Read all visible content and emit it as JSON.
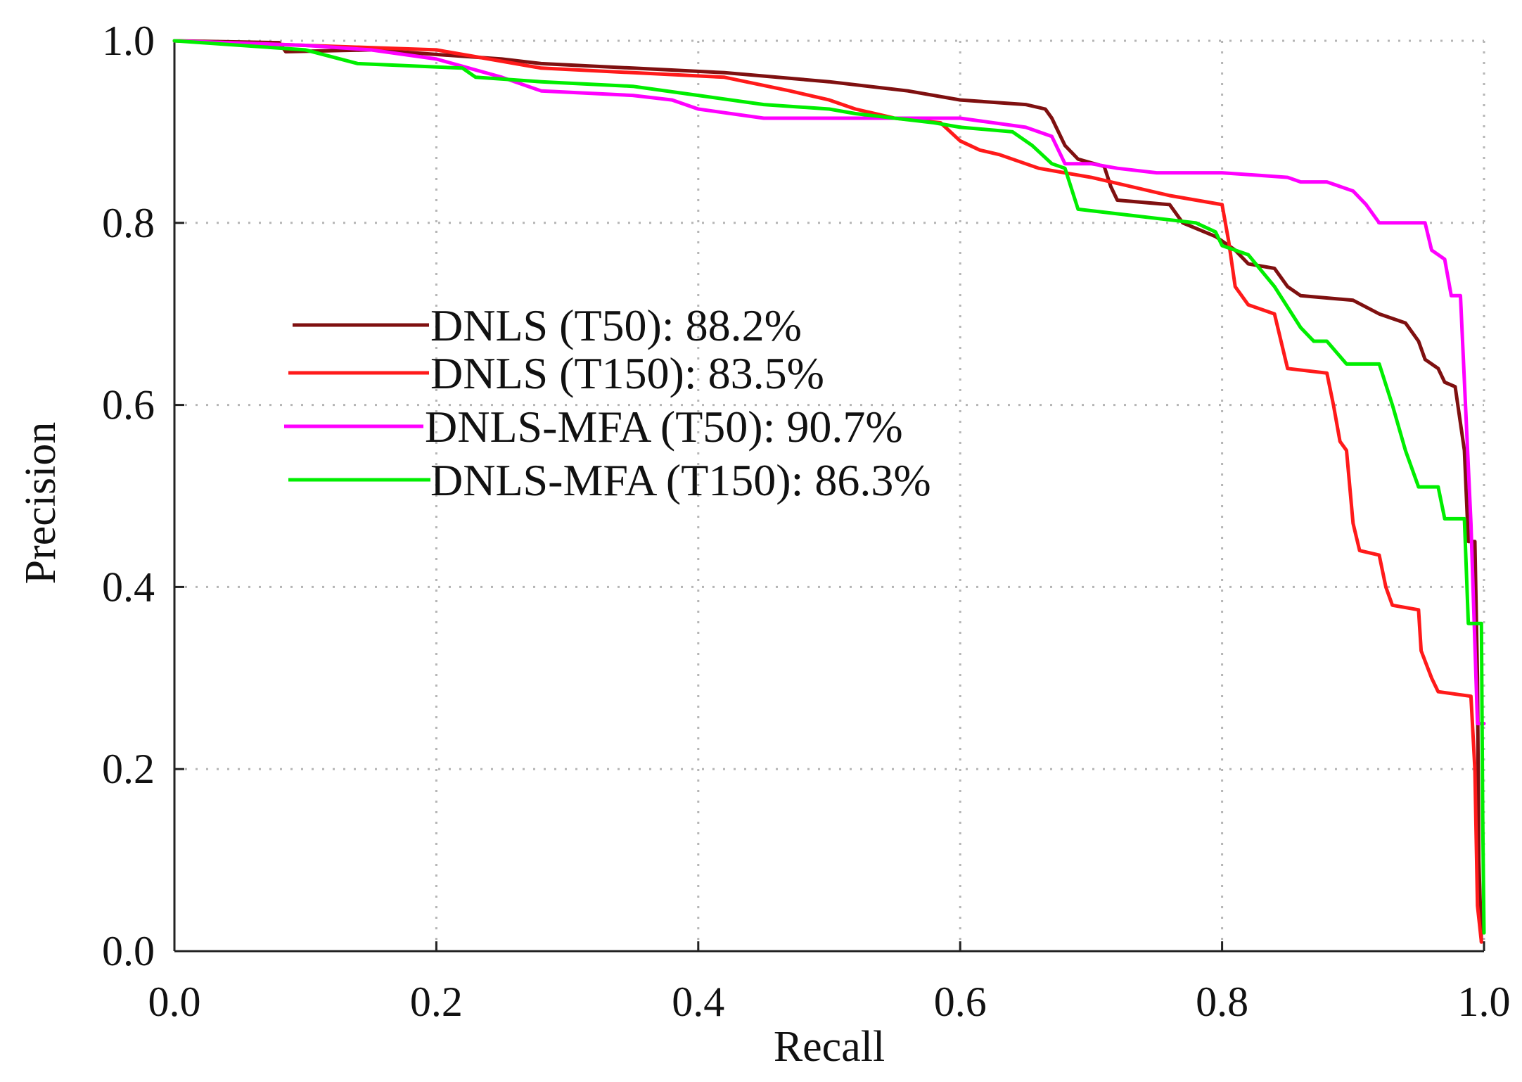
{
  "chart_data": {
    "type": "line",
    "title": "",
    "xlabel": "Recall",
    "ylabel": "Precision",
    "xlim": [
      0.0,
      1.0
    ],
    "ylim": [
      0.0,
      1.0
    ],
    "x_ticks": [
      "0.0",
      "0.2",
      "0.4",
      "0.6",
      "0.8",
      "1.0"
    ],
    "y_ticks": [
      "0.0",
      "0.2",
      "0.4",
      "0.6",
      "0.8",
      "1.0"
    ],
    "grid": true,
    "legend_position": "center-left",
    "series": [
      {
        "name": "DNLS (T50): 88.2%",
        "color": "#7f1010",
        "points": [
          [
            0.0,
            1.0
          ],
          [
            0.08,
            0.998
          ],
          [
            0.085,
            0.988
          ],
          [
            0.15,
            0.99
          ],
          [
            0.2,
            0.985
          ],
          [
            0.25,
            0.98
          ],
          [
            0.28,
            0.975
          ],
          [
            0.35,
            0.97
          ],
          [
            0.42,
            0.965
          ],
          [
            0.5,
            0.955
          ],
          [
            0.56,
            0.945
          ],
          [
            0.6,
            0.935
          ],
          [
            0.65,
            0.93
          ],
          [
            0.665,
            0.925
          ],
          [
            0.67,
            0.915
          ],
          [
            0.68,
            0.885
          ],
          [
            0.69,
            0.87
          ],
          [
            0.71,
            0.862
          ],
          [
            0.715,
            0.84
          ],
          [
            0.72,
            0.825
          ],
          [
            0.76,
            0.82
          ],
          [
            0.77,
            0.8
          ],
          [
            0.795,
            0.785
          ],
          [
            0.81,
            0.77
          ],
          [
            0.82,
            0.755
          ],
          [
            0.84,
            0.75
          ],
          [
            0.85,
            0.73
          ],
          [
            0.86,
            0.72
          ],
          [
            0.9,
            0.715
          ],
          [
            0.92,
            0.7
          ],
          [
            0.94,
            0.69
          ],
          [
            0.95,
            0.67
          ],
          [
            0.955,
            0.65
          ],
          [
            0.965,
            0.64
          ],
          [
            0.97,
            0.625
          ],
          [
            0.978,
            0.62
          ],
          [
            0.985,
            0.55
          ],
          [
            0.988,
            0.45
          ],
          [
            0.993,
            0.45
          ],
          [
            0.995,
            0.3
          ],
          [
            0.996,
            0.1
          ],
          [
            0.998,
            0.01
          ]
        ]
      },
      {
        "name": "DNLS (T150): 83.5%",
        "color": "#ff1a1a",
        "points": [
          [
            0.0,
            1.0
          ],
          [
            0.1,
            0.995
          ],
          [
            0.2,
            0.99
          ],
          [
            0.28,
            0.97
          ],
          [
            0.35,
            0.965
          ],
          [
            0.42,
            0.96
          ],
          [
            0.47,
            0.945
          ],
          [
            0.5,
            0.935
          ],
          [
            0.52,
            0.925
          ],
          [
            0.55,
            0.915
          ],
          [
            0.585,
            0.91
          ],
          [
            0.6,
            0.89
          ],
          [
            0.615,
            0.88
          ],
          [
            0.63,
            0.875
          ],
          [
            0.66,
            0.86
          ],
          [
            0.7,
            0.85
          ],
          [
            0.73,
            0.84
          ],
          [
            0.76,
            0.83
          ],
          [
            0.8,
            0.82
          ],
          [
            0.805,
            0.78
          ],
          [
            0.81,
            0.73
          ],
          [
            0.82,
            0.71
          ],
          [
            0.84,
            0.7
          ],
          [
            0.845,
            0.67
          ],
          [
            0.85,
            0.64
          ],
          [
            0.88,
            0.635
          ],
          [
            0.885,
            0.6
          ],
          [
            0.89,
            0.56
          ],
          [
            0.895,
            0.55
          ],
          [
            0.9,
            0.47
          ],
          [
            0.905,
            0.44
          ],
          [
            0.92,
            0.435
          ],
          [
            0.925,
            0.4
          ],
          [
            0.93,
            0.38
          ],
          [
            0.95,
            0.375
          ],
          [
            0.952,
            0.33
          ],
          [
            0.96,
            0.3
          ],
          [
            0.965,
            0.285
          ],
          [
            0.99,
            0.28
          ],
          [
            0.993,
            0.2
          ],
          [
            0.995,
            0.05
          ],
          [
            0.998,
            0.01
          ]
        ]
      },
      {
        "name": "DNLS-MFA (T50): 90.7%",
        "color": "#ff00ff",
        "points": [
          [
            0.0,
            1.0
          ],
          [
            0.1,
            0.995
          ],
          [
            0.15,
            0.99
          ],
          [
            0.2,
            0.98
          ],
          [
            0.25,
            0.96
          ],
          [
            0.28,
            0.945
          ],
          [
            0.35,
            0.94
          ],
          [
            0.38,
            0.935
          ],
          [
            0.4,
            0.925
          ],
          [
            0.45,
            0.915
          ],
          [
            0.5,
            0.915
          ],
          [
            0.6,
            0.915
          ],
          [
            0.65,
            0.905
          ],
          [
            0.67,
            0.895
          ],
          [
            0.68,
            0.865
          ],
          [
            0.7,
            0.865
          ],
          [
            0.72,
            0.86
          ],
          [
            0.75,
            0.855
          ],
          [
            0.8,
            0.855
          ],
          [
            0.85,
            0.85
          ],
          [
            0.86,
            0.845
          ],
          [
            0.88,
            0.845
          ],
          [
            0.9,
            0.835
          ],
          [
            0.91,
            0.82
          ],
          [
            0.92,
            0.8
          ],
          [
            0.955,
            0.8
          ],
          [
            0.96,
            0.77
          ],
          [
            0.97,
            0.76
          ],
          [
            0.975,
            0.72
          ],
          [
            0.982,
            0.72
          ],
          [
            0.99,
            0.47
          ],
          [
            0.995,
            0.25
          ],
          [
            1.0,
            0.25
          ]
        ]
      },
      {
        "name": "DNLS-MFA (T150): 86.3%",
        "color": "#00ee00",
        "points": [
          [
            0.0,
            1.0
          ],
          [
            0.1,
            0.99
          ],
          [
            0.14,
            0.975
          ],
          [
            0.22,
            0.97
          ],
          [
            0.23,
            0.96
          ],
          [
            0.28,
            0.955
          ],
          [
            0.35,
            0.95
          ],
          [
            0.4,
            0.94
          ],
          [
            0.45,
            0.93
          ],
          [
            0.5,
            0.925
          ],
          [
            0.52,
            0.92
          ],
          [
            0.55,
            0.915
          ],
          [
            0.58,
            0.91
          ],
          [
            0.6,
            0.905
          ],
          [
            0.64,
            0.9
          ],
          [
            0.655,
            0.885
          ],
          [
            0.67,
            0.865
          ],
          [
            0.68,
            0.86
          ],
          [
            0.69,
            0.815
          ],
          [
            0.72,
            0.81
          ],
          [
            0.78,
            0.8
          ],
          [
            0.795,
            0.79
          ],
          [
            0.8,
            0.775
          ],
          [
            0.82,
            0.765
          ],
          [
            0.84,
            0.73
          ],
          [
            0.86,
            0.685
          ],
          [
            0.87,
            0.67
          ],
          [
            0.88,
            0.67
          ],
          [
            0.895,
            0.645
          ],
          [
            0.92,
            0.645
          ],
          [
            0.93,
            0.6
          ],
          [
            0.94,
            0.55
          ],
          [
            0.95,
            0.51
          ],
          [
            0.965,
            0.51
          ],
          [
            0.97,
            0.475
          ],
          [
            0.985,
            0.475
          ],
          [
            0.988,
            0.36
          ],
          [
            0.995,
            0.36
          ],
          [
            0.998,
            0.36
          ],
          [
            0.999,
            0.15
          ],
          [
            1.0,
            0.02
          ]
        ]
      }
    ]
  }
}
